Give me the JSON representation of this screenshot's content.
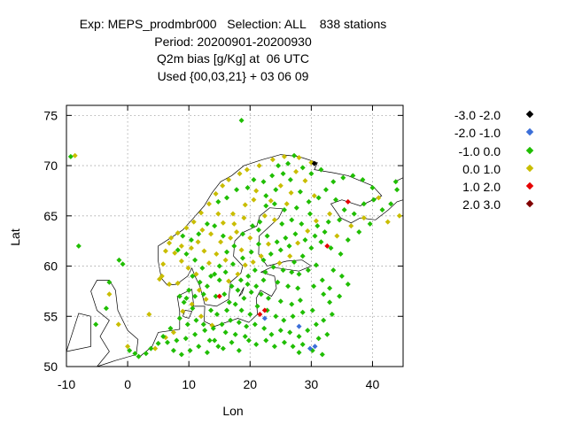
{
  "title": {
    "line1": "Exp: MEPS_prodmbr000   Selection: ALL    838 stations",
    "line2": "Period: 20200901-20200930",
    "line3": "Q2m bias [g/Kg] at  06 UTC",
    "line4": "Used {00,03,21} + 03 06 09"
  },
  "chart_data": {
    "type": "scatter",
    "xlabel": "Lon",
    "ylabel": "Lat",
    "xlim": [
      -10,
      45
    ],
    "ylim": [
      50,
      76
    ],
    "xticks": [
      "-10",
      "0",
      "10",
      "20",
      "30",
      "40"
    ],
    "yticks": [
      "50",
      "55",
      "60",
      "65",
      "70",
      "75"
    ],
    "grid": true,
    "legend_position": "right",
    "classes": [
      {
        "label": "-3.0 -2.0",
        "color": "#000000"
      },
      {
        "label": "-2.0 -1.0",
        "color": "#3c6fd8"
      },
      {
        "label": "-1.0 0.0",
        "color": "#1fbe00"
      },
      {
        "label": "0.0 1.0",
        "color": "#c9bd00"
      },
      {
        "label": "1.0 2.0",
        "color": "#e60000"
      },
      {
        "label": "2.0 3.0",
        "color": "#800000"
      }
    ],
    "points": [
      [
        -8.6,
        71.0,
        3
      ],
      [
        -3,
        57.2,
        3
      ],
      [
        4.5,
        51.8,
        3
      ],
      [
        0,
        52,
        3
      ],
      [
        -1.5,
        54.2,
        3
      ],
      [
        3.5,
        55.2,
        3
      ],
      [
        5.2,
        58.7,
        3
      ],
      [
        5.8,
        60.2,
        3
      ],
      [
        6.2,
        61.5,
        3
      ],
      [
        7.1,
        62.8,
        3
      ],
      [
        8.2,
        63.3,
        3
      ],
      [
        9.6,
        63.8,
        3
      ],
      [
        10.8,
        64.4,
        3
      ],
      [
        12.0,
        65.3,
        3
      ],
      [
        13.3,
        66.2,
        3
      ],
      [
        14.4,
        67.2,
        3
      ],
      [
        15.5,
        68.0,
        3
      ],
      [
        16.5,
        68.6,
        3
      ],
      [
        18.3,
        69.2,
        3
      ],
      [
        19.5,
        69.6,
        3
      ],
      [
        21.5,
        70.0,
        3
      ],
      [
        23.7,
        70.6,
        3
      ],
      [
        25.6,
        70.9,
        3
      ],
      [
        28.0,
        70.8,
        3
      ],
      [
        30.0,
        70.3,
        3
      ],
      [
        6.8,
        62.3,
        3
      ],
      [
        7.7,
        61.3,
        3
      ],
      [
        8.8,
        62.0,
        3
      ],
      [
        10.4,
        61.8,
        3
      ],
      [
        11.5,
        62.4,
        3
      ],
      [
        12.5,
        61.5,
        3
      ],
      [
        13.3,
        60.3,
        3
      ],
      [
        14.5,
        61.2,
        3
      ],
      [
        15.2,
        62.4,
        3
      ],
      [
        16.8,
        62.8,
        3
      ],
      [
        17.8,
        63.4,
        3
      ],
      [
        12.2,
        63.6,
        3
      ],
      [
        13.6,
        63.2,
        3
      ],
      [
        15.6,
        64.3,
        3
      ],
      [
        17.2,
        65.2,
        3
      ],
      [
        19.2,
        66.1,
        3
      ],
      [
        20.6,
        66.6,
        3
      ],
      [
        8.8,
        60.5,
        3
      ],
      [
        9.9,
        59.8,
        3
      ],
      [
        11.2,
        59.2,
        3
      ],
      [
        5.6,
        59.0,
        3
      ],
      [
        6.8,
        58.2,
        3
      ],
      [
        8.2,
        58.3,
        3
      ],
      [
        16.5,
        58.5,
        3
      ],
      [
        18.0,
        59.2,
        3
      ],
      [
        19.2,
        60.1,
        3
      ],
      [
        20.5,
        60.4,
        3
      ],
      [
        21.8,
        61.0,
        3
      ],
      [
        23.0,
        62.2,
        3
      ],
      [
        24.8,
        60.3,
        3
      ],
      [
        26.5,
        61.0,
        3
      ],
      [
        27.8,
        62.3,
        3
      ],
      [
        29.4,
        63.5,
        3
      ],
      [
        30.8,
        64.5,
        3
      ],
      [
        33.0,
        65.2,
        3
      ],
      [
        41.0,
        66.8,
        3
      ],
      [
        42.5,
        64.4,
        3
      ],
      [
        44.4,
        65.0,
        3
      ],
      [
        38.6,
        64.8,
        3
      ],
      [
        36.5,
        64.0,
        3
      ],
      [
        34.2,
        63.0,
        3
      ],
      [
        25.0,
        68.0,
        3
      ],
      [
        26.7,
        67.3,
        3
      ],
      [
        23.4,
        66.5,
        3
      ],
      [
        21.0,
        67.5,
        3
      ],
      [
        27.5,
        69.4,
        3
      ],
      [
        29.0,
        68.5,
        3
      ],
      [
        9.0,
        55.5,
        3
      ],
      [
        10.5,
        56.2,
        3
      ],
      [
        12.0,
        55.0,
        3
      ],
      [
        13.8,
        54.1,
        3
      ],
      [
        11.7,
        57.6,
        3
      ],
      [
        12.8,
        56.7,
        3
      ],
      [
        7.5,
        53.4,
        3
      ],
      [
        6.2,
        52.9,
        3
      ],
      [
        17.4,
        64.2,
        3
      ],
      [
        19.0,
        64.8,
        3
      ],
      [
        14.8,
        65.2,
        3
      ],
      [
        22.4,
        65.0,
        3
      ],
      [
        16.0,
        60.6,
        3
      ],
      [
        18.6,
        61.6,
        3
      ],
      [
        20.0,
        62.8,
        3
      ],
      [
        24.0,
        64.6,
        3
      ],
      [
        26.0,
        66.2,
        3
      ],
      [
        30.5,
        67.0,
        3
      ],
      [
        -9.3,
        70.9,
        2
      ],
      [
        18.6,
        74.5,
        2
      ],
      [
        -8.0,
        62.0,
        2
      ],
      [
        -3.0,
        58.4,
        2
      ],
      [
        -1.4,
        60.6,
        2
      ],
      [
        -0.8,
        60.2,
        2
      ],
      [
        -5.2,
        54.2,
        2
      ],
      [
        -3.5,
        55.8,
        2
      ],
      [
        0.3,
        51.6,
        2
      ],
      [
        1.2,
        51.3,
        2
      ],
      [
        1.8,
        51.0,
        2
      ],
      [
        3.0,
        51.3,
        2
      ],
      [
        3.8,
        51.8,
        2
      ],
      [
        5.0,
        52.3,
        2
      ],
      [
        5.8,
        53.0,
        2
      ],
      [
        7.0,
        53.8,
        2
      ],
      [
        8.5,
        54.8,
        2
      ],
      [
        9.2,
        56.4,
        2
      ],
      [
        8.5,
        57.0,
        2
      ],
      [
        10.0,
        57.6,
        2
      ],
      [
        10.6,
        59.0,
        2
      ],
      [
        11.8,
        58.4,
        2
      ],
      [
        13.0,
        58.0,
        2
      ],
      [
        14.4,
        57.0,
        2
      ],
      [
        15.8,
        57.2,
        2
      ],
      [
        16.6,
        56.4,
        2
      ],
      [
        18.0,
        57.6,
        2
      ],
      [
        18.5,
        58.6,
        2
      ],
      [
        19.7,
        59.0,
        2
      ],
      [
        20.8,
        59.6,
        2
      ],
      [
        22.5,
        59.4,
        2
      ],
      [
        23.8,
        59.9,
        2
      ],
      [
        25.4,
        59.6,
        2
      ],
      [
        26.8,
        59.4,
        2
      ],
      [
        28.0,
        59.2,
        2
      ],
      [
        29.5,
        59.6,
        2
      ],
      [
        30.8,
        60.1,
        2
      ],
      [
        22.2,
        58.6,
        2
      ],
      [
        24.5,
        58.4,
        2
      ],
      [
        26.2,
        58.0,
        2
      ],
      [
        27.8,
        57.8,
        2
      ],
      [
        21.8,
        57.2,
        2
      ],
      [
        23.0,
        56.8,
        2
      ],
      [
        25.0,
        56.5,
        2
      ],
      [
        26.8,
        56.2,
        2
      ],
      [
        28.2,
        56.6,
        2
      ],
      [
        21.2,
        56.0,
        2
      ],
      [
        22.8,
        55.6,
        2
      ],
      [
        24.2,
        55.0,
        2
      ],
      [
        25.5,
        54.6,
        2
      ],
      [
        27.0,
        55.0,
        2
      ],
      [
        28.6,
        55.4,
        2
      ],
      [
        30.2,
        55.6,
        2
      ],
      [
        20.8,
        54.2,
        2
      ],
      [
        22.3,
        53.8,
        2
      ],
      [
        23.5,
        53.2,
        2
      ],
      [
        25.0,
        53.6,
        2
      ],
      [
        26.5,
        53.4,
        2
      ],
      [
        28.0,
        53.0,
        2
      ],
      [
        29.4,
        53.6,
        2
      ],
      [
        30.8,
        54.2,
        2
      ],
      [
        32.0,
        54.6,
        2
      ],
      [
        19.8,
        52.6,
        2
      ],
      [
        21.0,
        52.2,
        2
      ],
      [
        22.6,
        52.6,
        2
      ],
      [
        24.0,
        52.0,
        2
      ],
      [
        25.6,
        52.4,
        2
      ],
      [
        27.0,
        52.0,
        2
      ],
      [
        28.6,
        52.2,
        2
      ],
      [
        30.2,
        51.6,
        2
      ],
      [
        31.8,
        51.2,
        2
      ],
      [
        18.2,
        51.6,
        2
      ],
      [
        17.0,
        52.4,
        2
      ],
      [
        15.6,
        51.8,
        2
      ],
      [
        14.2,
        52.6,
        2
      ],
      [
        13.0,
        51.4,
        2
      ],
      [
        11.6,
        52.0,
        2
      ],
      [
        10.2,
        51.6,
        2
      ],
      [
        8.8,
        51.2,
        2
      ],
      [
        7.5,
        51.6,
        2
      ],
      [
        6.5,
        52.4,
        2
      ],
      [
        9.5,
        52.8,
        2
      ],
      [
        11.0,
        53.2,
        2
      ],
      [
        12.6,
        53.6,
        2
      ],
      [
        14.0,
        53.8,
        2
      ],
      [
        15.4,
        54.2,
        2
      ],
      [
        16.8,
        54.6,
        2
      ],
      [
        18.2,
        54.4,
        2
      ],
      [
        19.4,
        54.0,
        2
      ],
      [
        9.8,
        54.2,
        2
      ],
      [
        11.2,
        54.6,
        2
      ],
      [
        12.4,
        54.2,
        2
      ],
      [
        8.0,
        52.6,
        2
      ],
      [
        10.6,
        55.8,
        2
      ],
      [
        9.6,
        56.8,
        2
      ],
      [
        11.0,
        57.0,
        2
      ],
      [
        12.4,
        57.2,
        2
      ],
      [
        13.6,
        55.6,
        2
      ],
      [
        14.6,
        55.2,
        2
      ],
      [
        16.2,
        55.6,
        2
      ],
      [
        17.6,
        56.2,
        2
      ],
      [
        19.0,
        56.8,
        2
      ],
      [
        20.2,
        57.4,
        2
      ],
      [
        33.0,
        57.8,
        2
      ],
      [
        31.8,
        58.6,
        2
      ],
      [
        30.4,
        58.0,
        2
      ],
      [
        33.6,
        59.6,
        2
      ],
      [
        34.8,
        61.2,
        2
      ],
      [
        33.2,
        61.8,
        2
      ],
      [
        31.6,
        62.4,
        2
      ],
      [
        30.0,
        61.8,
        2
      ],
      [
        28.6,
        61.0,
        2
      ],
      [
        27.2,
        60.4,
        2
      ],
      [
        32.2,
        63.4,
        2
      ],
      [
        30.6,
        63.0,
        2
      ],
      [
        29.0,
        62.6,
        2
      ],
      [
        27.4,
        63.2,
        2
      ],
      [
        25.8,
        62.8,
        2
      ],
      [
        24.4,
        62.4,
        2
      ],
      [
        22.8,
        63.0,
        2
      ],
      [
        21.4,
        63.6,
        2
      ],
      [
        25.2,
        64.2,
        2
      ],
      [
        26.8,
        64.6,
        2
      ],
      [
        28.4,
        64.2,
        2
      ],
      [
        29.8,
        65.2,
        2
      ],
      [
        27.6,
        65.8,
        2
      ],
      [
        25.6,
        65.6,
        2
      ],
      [
        24.0,
        66.2,
        2
      ],
      [
        22.6,
        66.0,
        2
      ],
      [
        21.6,
        64.4,
        2
      ],
      [
        20.4,
        64.0,
        2
      ],
      [
        18.8,
        63.2,
        2
      ],
      [
        17.4,
        62.0,
        2
      ],
      [
        16.2,
        61.4,
        2
      ],
      [
        15.0,
        60.0,
        2
      ],
      [
        14.2,
        59.2,
        2
      ],
      [
        16.0,
        59.4,
        2
      ],
      [
        17.2,
        60.2,
        2
      ],
      [
        18.8,
        60.8,
        2
      ],
      [
        20.2,
        61.4,
        2
      ],
      [
        21.4,
        62.2,
        2
      ],
      [
        12.2,
        59.8,
        2
      ],
      [
        11.0,
        60.6,
        2
      ],
      [
        9.6,
        61.2,
        2
      ],
      [
        8.2,
        61.6,
        2
      ],
      [
        10.4,
        62.6,
        2
      ],
      [
        9.0,
        63.0,
        2
      ],
      [
        11.6,
        63.2,
        2
      ],
      [
        13.0,
        64.2,
        2
      ],
      [
        14.2,
        64.0,
        2
      ],
      [
        15.6,
        63.0,
        2
      ],
      [
        14.8,
        66.4,
        2
      ],
      [
        16.2,
        66.8,
        2
      ],
      [
        17.8,
        67.6,
        2
      ],
      [
        19.6,
        67.8,
        2
      ],
      [
        20.6,
        68.6,
        2
      ],
      [
        22.2,
        68.4,
        2
      ],
      [
        23.6,
        69.0,
        2
      ],
      [
        25.4,
        69.2,
        2
      ],
      [
        26.6,
        68.6,
        2
      ],
      [
        24.2,
        67.6,
        2
      ],
      [
        22.6,
        67.0,
        2
      ],
      [
        28.2,
        67.4,
        2
      ],
      [
        29.6,
        66.4,
        2
      ],
      [
        31.2,
        66.8,
        2
      ],
      [
        32.4,
        67.6,
        2
      ],
      [
        33.6,
        68.4,
        2
      ],
      [
        35.2,
        68.8,
        2
      ],
      [
        36.8,
        69.0,
        2
      ],
      [
        38.4,
        68.6,
        2
      ],
      [
        40.0,
        67.8,
        2
      ],
      [
        34.0,
        66.6,
        2
      ],
      [
        35.4,
        65.6,
        2
      ],
      [
        37.0,
        65.2,
        2
      ],
      [
        38.6,
        66.2,
        2
      ],
      [
        40.2,
        66.6,
        2
      ],
      [
        41.6,
        65.6,
        2
      ],
      [
        43.0,
        66.2,
        2
      ],
      [
        44.0,
        67.6,
        2
      ],
      [
        43.8,
        68.4,
        2
      ],
      [
        39.6,
        64.2,
        2
      ],
      [
        37.8,
        63.4,
        2
      ],
      [
        36.0,
        62.6,
        2
      ],
      [
        34.6,
        64.6,
        2
      ],
      [
        32.8,
        64.4,
        2
      ],
      [
        31.0,
        64.0,
        2
      ],
      [
        30.0,
        69.2,
        2
      ],
      [
        28.6,
        69.8,
        2
      ],
      [
        31.6,
        69.6,
        2
      ],
      [
        26.2,
        70.2,
        2
      ],
      [
        24.6,
        70.0,
        2
      ],
      [
        27.2,
        71.0,
        2
      ],
      [
        17.0,
        58.0,
        2
      ],
      [
        15.0,
        58.6,
        2
      ],
      [
        13.6,
        59.0,
        2
      ],
      [
        19.6,
        58.2,
        2
      ],
      [
        21.0,
        58.0,
        2
      ],
      [
        20.0,
        55.2,
        2
      ],
      [
        18.6,
        55.6,
        2
      ],
      [
        16.0,
        53.4,
        2
      ],
      [
        17.6,
        53.2,
        2
      ],
      [
        19.2,
        53.0,
        2
      ],
      [
        13.4,
        52.6,
        2
      ],
      [
        14.8,
        52.0,
        2
      ],
      [
        28.0,
        51.4,
        2
      ],
      [
        31.2,
        52.8,
        2
      ],
      [
        32.6,
        53.2,
        2
      ],
      [
        33.4,
        55.2,
        2
      ],
      [
        33.0,
        56.4,
        2
      ],
      [
        32.0,
        57.2,
        2
      ],
      [
        34.6,
        57.0,
        2
      ],
      [
        36.0,
        58.2,
        2
      ],
      [
        35.0,
        59.0,
        2
      ],
      [
        22.2,
        60.6,
        2
      ],
      [
        23.4,
        61.2,
        2
      ],
      [
        25.0,
        61.6,
        2
      ],
      [
        26.4,
        62.0,
        2
      ],
      [
        22.4,
        54.8,
        1
      ],
      [
        28.0,
        54.0,
        1
      ],
      [
        30.6,
        52.0,
        1
      ],
      [
        29.8,
        51.8,
        1
      ],
      [
        36.0,
        66.4,
        4
      ],
      [
        32.6,
        62.0,
        4
      ],
      [
        15.0,
        57.0,
        4
      ],
      [
        21.6,
        55.2,
        4
      ],
      [
        22.4,
        55.6,
        4
      ],
      [
        30.5,
        70.2,
        0
      ]
    ]
  }
}
